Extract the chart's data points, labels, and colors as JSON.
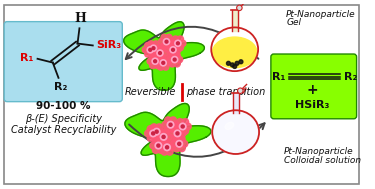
{
  "bg_color": "#ffffff",
  "border_color": "#888888",
  "left_box_color": "#aadeee",
  "right_box_color": "#88ff00",
  "top_right_label": [
    "Pt-Nanoparticle",
    "Gel"
  ],
  "bottom_right_label": [
    "Pt-Nanoparticle",
    "Colloidal solution"
  ],
  "center_text_left": "Reversible",
  "center_text_right": "phase transition",
  "green_blob_color": "#55ee00",
  "green_blob_edge": "#228800",
  "pink_color": "#ff5577",
  "pink_light": "#ffaacc",
  "pink_dark": "#cc2244",
  "flask_yellow": "#ffee44",
  "flask_body_color": "#ffffff",
  "flask_outline": "#cc2222",
  "flask_bottom_color": "#111111",
  "arrow_color": "#444444",
  "red_divider_color": "#dd0000",
  "left_box_border": "#66bbcc",
  "triple_bond_color": "#111111",
  "structure_bond_color": "#111111",
  "text_black": "#111111",
  "text_red": "#dd0000",
  "right_box_border": "#228800",
  "stopper_color": "#cc2222"
}
